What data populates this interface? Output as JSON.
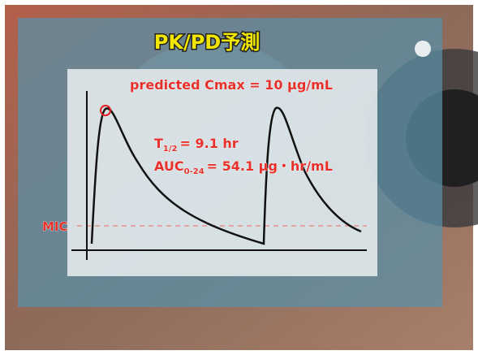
{
  "title": "PK/PD予測",
  "annotations": {
    "cmax": "predicted Cmax = 10 μg/mL",
    "half_life": {
      "main": "T",
      "sub": "1/2",
      "rest": "= 9.1 hr"
    },
    "auc": {
      "main": "AUC",
      "sub": "0-24",
      "rest": "= 54.1 μg・hr/mL"
    },
    "mic": "MIC"
  }
}
